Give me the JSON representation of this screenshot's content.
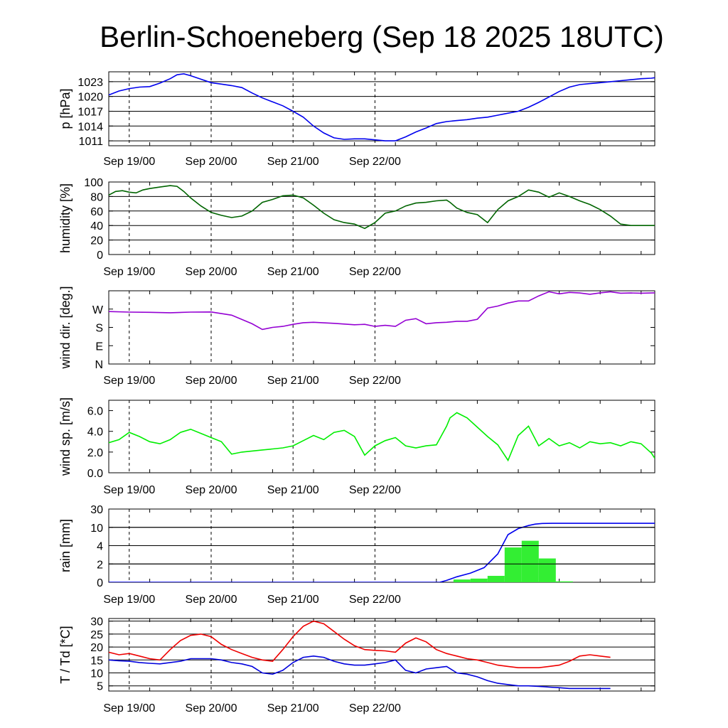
{
  "title": "Berlin-Schoeneberg (Sep 18 2025 18UTC)",
  "colors": {
    "pressure": "#0000ee",
    "humidity": "#006400",
    "wind_dir": "#9400d3",
    "wind_speed": "#00ee00",
    "rain_cum": "#0000ee",
    "rain_bar": "#33ee33",
    "temperature": "#ee0000",
    "dewpoint": "#0000dd"
  },
  "x_tick_labels": [
    "Sep 19/00",
    "Sep 20/00",
    "Sep 21/00",
    "Sep 22/00"
  ],
  "chart_data": [
    {
      "type": "line",
      "ylabel": "p [hPa]",
      "ylim": [
        1010,
        1025
      ],
      "yticks": [
        1011,
        1014,
        1017,
        1020,
        1023
      ],
      "grid": true,
      "x": [
        0,
        3,
        6,
        9,
        12,
        15,
        18,
        20,
        22,
        24,
        27,
        30,
        33,
        36,
        39,
        42,
        45,
        48,
        51,
        54,
        57,
        60,
        63,
        66,
        69,
        72,
        75,
        78,
        81,
        84,
        87,
        90,
        93,
        96,
        99,
        102,
        105,
        108,
        111,
        114,
        117,
        120,
        123,
        126,
        129,
        132,
        135,
        138,
        141,
        144,
        147,
        150,
        153,
        156,
        159,
        160
      ],
      "series": [
        {
          "values": [
            1020.3,
            1021.1,
            1021.6,
            1021.9,
            1022.0,
            1022.7,
            1023.6,
            1024.4,
            1024.6,
            1024.2,
            1023.5,
            1022.8,
            1022.5,
            1022.2,
            1021.8,
            1020.7,
            1019.7,
            1018.9,
            1018.1,
            1017.0,
            1015.8,
            1014.0,
            1012.6,
            1011.6,
            1011.3,
            1011.4,
            1011.4,
            1011.2,
            1011.0,
            1011.0,
            1011.8,
            1012.8,
            1013.6,
            1014.5,
            1014.9,
            1015.1,
            1015.3,
            1015.6,
            1015.8,
            1016.2,
            1016.6,
            1017.0,
            1017.8,
            1018.8,
            1019.9,
            1021.0,
            1021.9,
            1022.4,
            1022.6,
            1022.8,
            1023.0,
            1023.2,
            1023.4,
            1023.6,
            1023.7,
            1023.8
          ]
        }
      ]
    },
    {
      "type": "line",
      "ylabel": "humidity [%]",
      "ylim": [
        0,
        100
      ],
      "yticks": [
        0,
        20,
        40,
        60,
        80,
        100
      ],
      "grid": true,
      "x": [
        0,
        2,
        4,
        6,
        8,
        10,
        12,
        15,
        18,
        20,
        22,
        24,
        27,
        30,
        33,
        36,
        39,
        42,
        45,
        48,
        51,
        54,
        57,
        60,
        63,
        66,
        69,
        72,
        75,
        78,
        81,
        84,
        87,
        90,
        93,
        96,
        99,
        100,
        102,
        105,
        108,
        111,
        114,
        117,
        120,
        123,
        126,
        129,
        132,
        135,
        138,
        141,
        144,
        147,
        150,
        153,
        156,
        160
      ],
      "series": [
        {
          "values": [
            82,
            87,
            88,
            86,
            85,
            89,
            91,
            93,
            95,
            94,
            87,
            78,
            67,
            58,
            54,
            51,
            53,
            60,
            72,
            76,
            81,
            82,
            78,
            68,
            57,
            48,
            44,
            42,
            36,
            44,
            57,
            60,
            67,
            71,
            72,
            74,
            75,
            72,
            64,
            58,
            55,
            44,
            62,
            74,
            80,
            89,
            86,
            79,
            85,
            80,
            74,
            69,
            62,
            53,
            42,
            40,
            40,
            40
          ]
        }
      ]
    },
    {
      "type": "line",
      "ylabel": "wind dir. [deg.]",
      "ylim": [
        0,
        360
      ],
      "yticks": [
        0,
        90,
        180,
        270
      ],
      "ytick_labels": [
        "N",
        "E",
        "S",
        "W"
      ],
      "grid": false,
      "x": [
        0,
        6,
        12,
        18,
        24,
        30,
        36,
        42,
        45,
        48,
        51,
        54,
        57,
        60,
        66,
        72,
        75,
        78,
        81,
        84,
        87,
        90,
        93,
        96,
        99,
        102,
        105,
        108,
        111,
        114,
        117,
        120,
        123,
        126,
        129,
        132,
        135,
        138,
        141,
        144,
        147,
        150,
        153,
        156,
        160
      ],
      "series": [
        {
          "values": [
            258,
            255,
            254,
            252,
            255,
            256,
            240,
            198,
            170,
            180,
            185,
            195,
            203,
            205,
            200,
            193,
            195,
            185,
            190,
            185,
            215,
            223,
            198,
            203,
            205,
            210,
            210,
            220,
            275,
            285,
            300,
            310,
            310,
            335,
            355,
            345,
            352,
            349,
            343,
            350,
            355,
            348,
            349,
            348,
            350
          ]
        }
      ]
    },
    {
      "type": "line",
      "ylabel": "wind sp. [m/s]",
      "ylim": [
        0,
        7
      ],
      "yticks": [
        0.0,
        2.0,
        4.0,
        6.0
      ],
      "grid": false,
      "x": [
        0,
        3,
        6,
        9,
        12,
        15,
        18,
        21,
        24,
        27,
        30,
        33,
        36,
        39,
        42,
        45,
        48,
        51,
        54,
        57,
        60,
        63,
        66,
        69,
        72,
        75,
        78,
        81,
        84,
        87,
        90,
        93,
        96,
        99,
        100,
        102,
        105,
        108,
        111,
        114,
        117,
        120,
        123,
        126,
        129,
        132,
        135,
        138,
        141,
        144,
        147,
        150,
        153,
        156,
        159,
        160
      ],
      "series": [
        {
          "values": [
            2.9,
            3.2,
            3.9,
            3.5,
            3.0,
            2.8,
            3.2,
            3.9,
            4.2,
            3.8,
            3.4,
            3.0,
            1.8,
            2.0,
            2.1,
            2.2,
            2.3,
            2.4,
            2.6,
            3.1,
            3.6,
            3.2,
            3.9,
            4.1,
            3.5,
            1.7,
            2.6,
            3.1,
            3.4,
            2.6,
            2.4,
            2.6,
            2.7,
            4.5,
            5.3,
            5.8,
            5.3,
            4.4,
            3.5,
            2.7,
            1.2,
            3.6,
            4.5,
            2.6,
            3.3,
            2.6,
            2.9,
            2.4,
            3.0,
            2.8,
            2.9,
            2.6,
            3.0,
            2.8,
            1.9,
            1.4
          ]
        }
      ]
    },
    {
      "type": "bar",
      "ylabel": "rain [mm]",
      "ylim": [
        0,
        30
      ],
      "yticks": [
        0,
        2,
        4,
        10,
        30
      ],
      "scale": "piecewise",
      "grid": true,
      "bar_width_hours": 5,
      "bars": [
        {
          "x": 101,
          "value": 0.3
        },
        {
          "x": 106,
          "value": 0.4
        },
        {
          "x": 111,
          "value": 0.7
        },
        {
          "x": 116,
          "value": 3.8
        },
        {
          "x": 121,
          "value": 5.6
        },
        {
          "x": 126,
          "value": 2.6
        },
        {
          "x": 131,
          "value": 0.1
        }
      ],
      "cumulative": {
        "x": [
          0,
          90,
          97,
          99,
          102,
          106,
          110,
          114,
          117,
          120,
          123,
          125,
          127,
          130,
          135,
          140,
          145,
          150,
          155,
          160
        ],
        "values": [
          0,
          0,
          0,
          0.2,
          0.6,
          1.0,
          1.6,
          3.1,
          7.6,
          9.6,
          12.0,
          13.5,
          14.2,
          14.4,
          14.4,
          14.4,
          14.4,
          14.4,
          14.4,
          14.4
        ]
      }
    },
    {
      "type": "line",
      "ylabel": "T / Td [*C]",
      "ylim": [
        3,
        31
      ],
      "yticks": [
        5,
        10,
        15,
        20,
        25,
        30
      ],
      "grid": true,
      "x": [
        0,
        3,
        6,
        9,
        12,
        15,
        18,
        21,
        24,
        27,
        30,
        33,
        36,
        39,
        42,
        45,
        48,
        51,
        54,
        57,
        60,
        63,
        66,
        69,
        72,
        75,
        78,
        81,
        84,
        87,
        90,
        93,
        96,
        99,
        102,
        105,
        108,
        111,
        114,
        117,
        120,
        123,
        126,
        129,
        132,
        135,
        138,
        141,
        144,
        147,
        150,
        153,
        156,
        159,
        160
      ],
      "series": [
        {
          "values": [
            18,
            17,
            17.5,
            16.5,
            15.5,
            15,
            19,
            22.5,
            24.5,
            25,
            24,
            21,
            19,
            17.5,
            16,
            15,
            14.5,
            19,
            24,
            28,
            30,
            29,
            26,
            23,
            20.5,
            19,
            18.7,
            18.5,
            18,
            21.5,
            23.5,
            22,
            19,
            17.5,
            16.5,
            15.5,
            15,
            14,
            13,
            12.5,
            12,
            12,
            12,
            12.5,
            13,
            14.5,
            16.5,
            17,
            16.5,
            16,
            null,
            null,
            null,
            null,
            null
          ]
        },
        {
          "values": [
            15,
            14.7,
            14.5,
            14,
            13.7,
            13.5,
            14,
            14.5,
            15.5,
            15.5,
            15.5,
            15,
            14,
            13.5,
            12.5,
            10,
            9.5,
            11,
            14,
            16,
            16.5,
            16,
            14.5,
            13.5,
            13,
            13,
            13.5,
            14,
            15,
            11,
            10,
            11.5,
            12,
            12.5,
            10,
            9.5,
            8.5,
            7,
            6,
            5.5,
            5,
            5,
            4.8,
            4.5,
            4.3,
            4,
            4,
            4,
            4,
            4,
            null,
            null,
            null,
            null,
            null
          ]
        }
      ]
    }
  ]
}
